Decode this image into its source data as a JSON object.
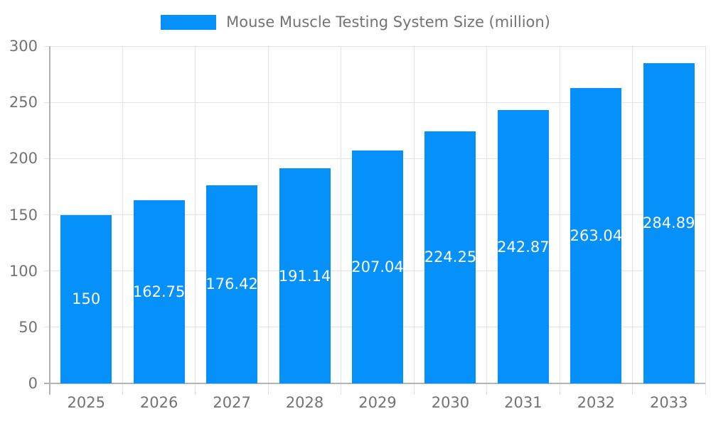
{
  "chart_data": {
    "type": "bar",
    "title": "Mouse Muscle Testing System Size (million)",
    "legend_label": "Mouse Muscle Testing System Size (million)",
    "legend_position": "top",
    "categories": [
      "2025",
      "2026",
      "2027",
      "2028",
      "2029",
      "2030",
      "2031",
      "2032",
      "2033"
    ],
    "values": [
      150,
      162.75,
      176.42,
      191.14,
      207.04,
      224.25,
      242.87,
      263.04,
      284.89
    ],
    "value_labels": [
      "150",
      "162.75",
      "176.42",
      "191.14",
      "207.04",
      "224.25",
      "242.87",
      "263.04",
      "284.89"
    ],
    "xlabel": "",
    "ylabel": "",
    "ylim": [
      0,
      300
    ],
    "yticks": [
      0,
      50,
      100,
      150,
      200,
      250,
      300
    ],
    "grid": true,
    "colors": {
      "bar": "#0690fa",
      "grid": "#e3e3e3",
      "axis": "#b3b3b3",
      "tick_label": "#737373",
      "value_text": "#ffffff",
      "background": "#ffffff"
    }
  }
}
